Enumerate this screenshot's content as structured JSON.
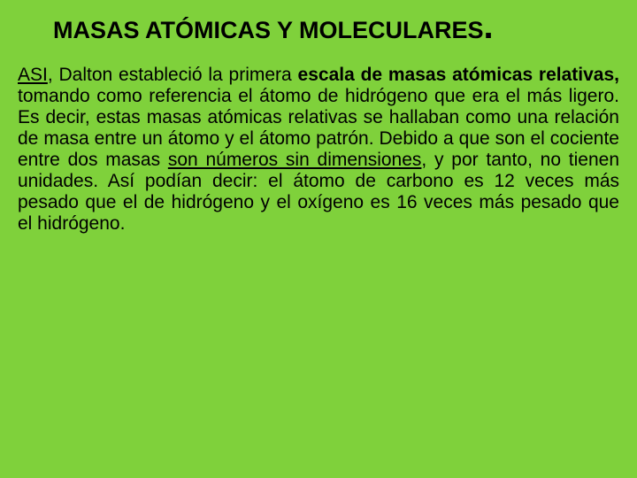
{
  "slide": {
    "background_color": "#7fd13b",
    "title": {
      "text": "MASAS ATÓMICAS Y MOLECULARES",
      "dot": ".",
      "color": "#000000",
      "font_size": 27,
      "font_weight": "bold"
    },
    "body": {
      "color": "#000000",
      "font_size": 21,
      "text_align": "justify",
      "segments": {
        "s1": "ASI",
        "s2": ", Dalton estableció la primera ",
        "s3": "escala de masas atómicas relativas,",
        "s4": " tomando como referencia el átomo de hidrógeno que era el más ligero. Es decir, estas masas atómicas relativas se hallaban como una relación de masa entre un átomo y el átomo patrón. Debido a que son el cociente entre dos masas ",
        "s5": "son números sin dimensiones",
        "s6": ", y por tanto, no tienen unidades. Así podían decir: el átomo de carbono es 12 veces más pesado que el de hidrógeno y el oxígeno es 16 veces más pesado que el hidrógeno."
      }
    }
  }
}
